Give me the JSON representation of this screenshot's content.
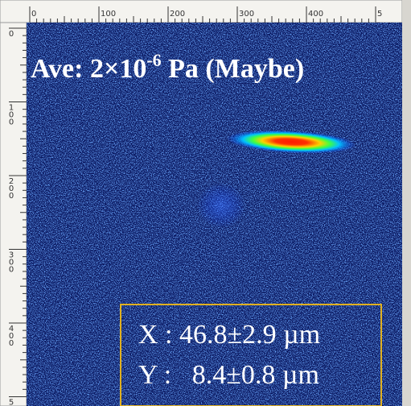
{
  "rulers": {
    "top": [
      "0",
      "100",
      "200",
      "300",
      "400",
      "5"
    ],
    "left": [
      "0",
      "100",
      "200",
      "300",
      "400",
      "5"
    ]
  },
  "overlay": {
    "title": "Ave: 2×10",
    "title_exponent": "-6",
    "title_suffix": " Pa (Maybe)"
  },
  "measurements": [
    "X : 46.8±2.9 µm",
    "Y :   8.4±0.8 µm"
  ]
}
